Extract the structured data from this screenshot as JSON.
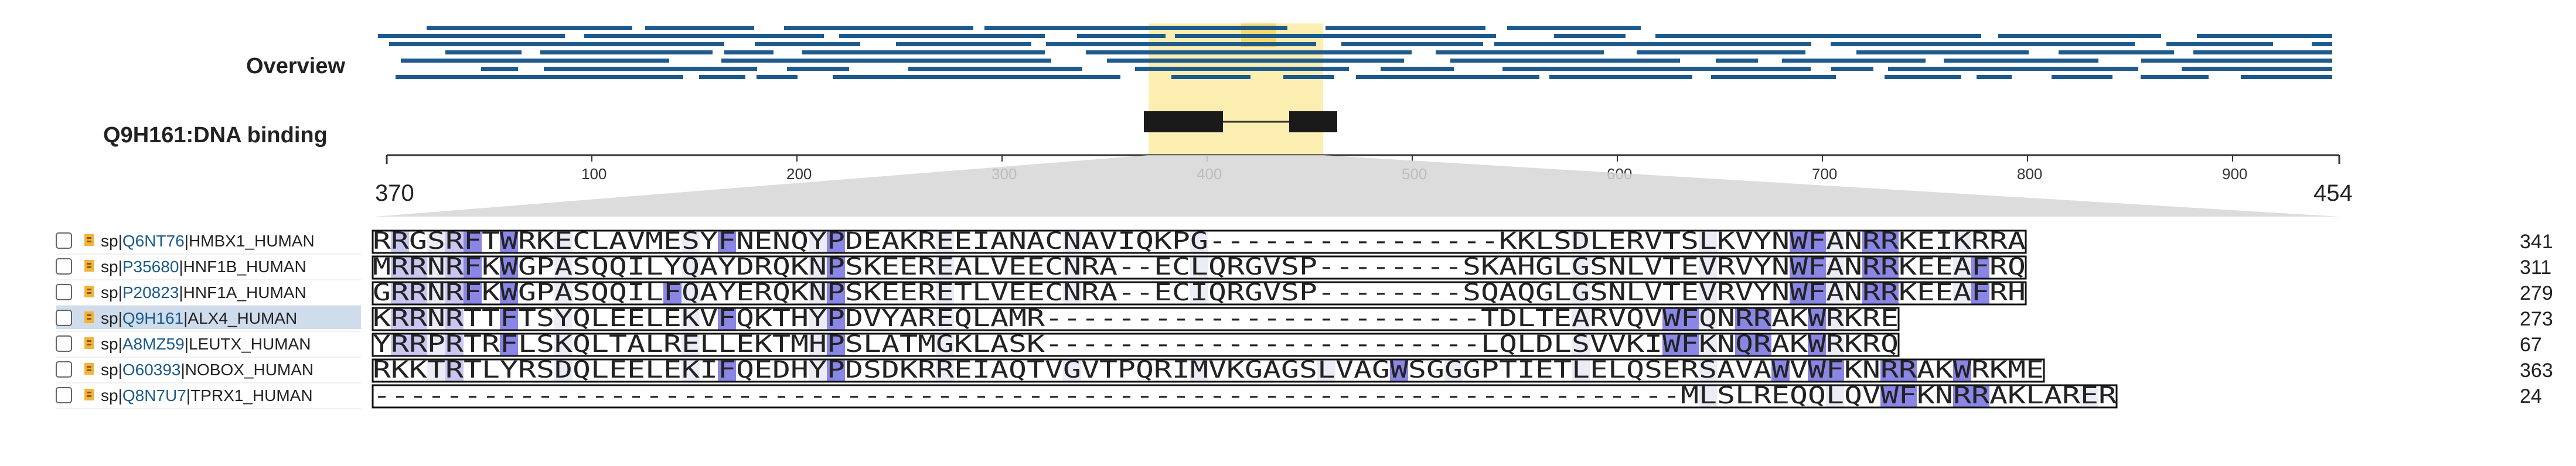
{
  "track_labels": {
    "overview": "Overview",
    "feature": "Q9H161:DNA binding"
  },
  "ruler": {
    "start_label": "370",
    "end_label": "454",
    "ticks": [
      "100",
      "200",
      "300",
      "400",
      "500",
      "600",
      "700",
      "800",
      "900"
    ]
  },
  "colors": {
    "overview_bar": "#1f5a8c",
    "highlight": "#fbeeb0",
    "feature_block": "#1a1a1a",
    "conservation_high": "#8a86e6",
    "conservation_mid": "#c9c7f2",
    "conservation_low": "#ececf6",
    "selected_row": "#cfdceb"
  },
  "icons": {
    "checkbox": "checkbox-icon",
    "entry": "uniprot-entry-icon"
  },
  "rows": [
    {
      "prefix": "sp|",
      "accession": "Q6NT76",
      "name": "|HMBX1_HUMAN",
      "seq": "RRGSRFTWRKECLAVMESYFNENQYPDEAKREEIANACNAVIQKPG----------------KKLSDLERVTSLKVYNWFANRRKEIKRRA",
      "end": "341",
      "selected": false
    },
    {
      "prefix": "sp|",
      "accession": "P35680",
      "name": "|HNF1B_HUMAN",
      "seq": "MRRNRFKWGPASQQILYQAYDRQKNPSKEEREALVEECNRA--ECLQRGVSP--------SKAHGLGSNLVTEVRVYNWFANRRKEEAFRQ",
      "end": "311",
      "selected": false
    },
    {
      "prefix": "sp|",
      "accession": "P20823",
      "name": "|HNF1A_HUMAN",
      "seq": "GRRNRFKWGPASQQILFQAYERQKNPSKEERETLVEECNRA--ECIQRGVSP--------SQAQGLGSNLVTEVRVYNWFANRRKEEAFRH",
      "end": "279",
      "selected": false
    },
    {
      "prefix": "sp|",
      "accession": "Q9H161",
      "name": "|ALX4_HUMAN",
      "seq": "KRRNRTTFTSYQLEELEKVFQKTHYPDVYAREQLAMR------------------------TDLTEARVQVWFQNRRAKWRKRE",
      "end": "273",
      "selected": true
    },
    {
      "prefix": "sp|",
      "accession": "A8MZ59",
      "name": "|LEUTX_HUMAN",
      "seq": "YRRPRTRFLSKQLTALRELLEKTMHPSLATMGKLASK------------------------LQLDLSVVKIWFKNQRAKWRKRQ",
      "end": "67",
      "selected": false
    },
    {
      "prefix": "sp|",
      "accession": "O60393",
      "name": "|NOBOX_HUMAN",
      "seq": "RKKTRTLYRSDQLEELEKIFQEDHYPDSDKRREIAQTVGVTPQRIMVKGAGSLVAGWSGGGPTIETLELQSERSAVAWVWFKNRRAKWRKME",
      "end": "363",
      "selected": false
    },
    {
      "prefix": "sp|",
      "accession": "Q8N7U7",
      "name": "|TPRX1_HUMAN",
      "seq": "------------------------------------------------------------------------MLSLREQQLQVWFKNRRAKLARER",
      "end": "24",
      "selected": false
    }
  ]
}
